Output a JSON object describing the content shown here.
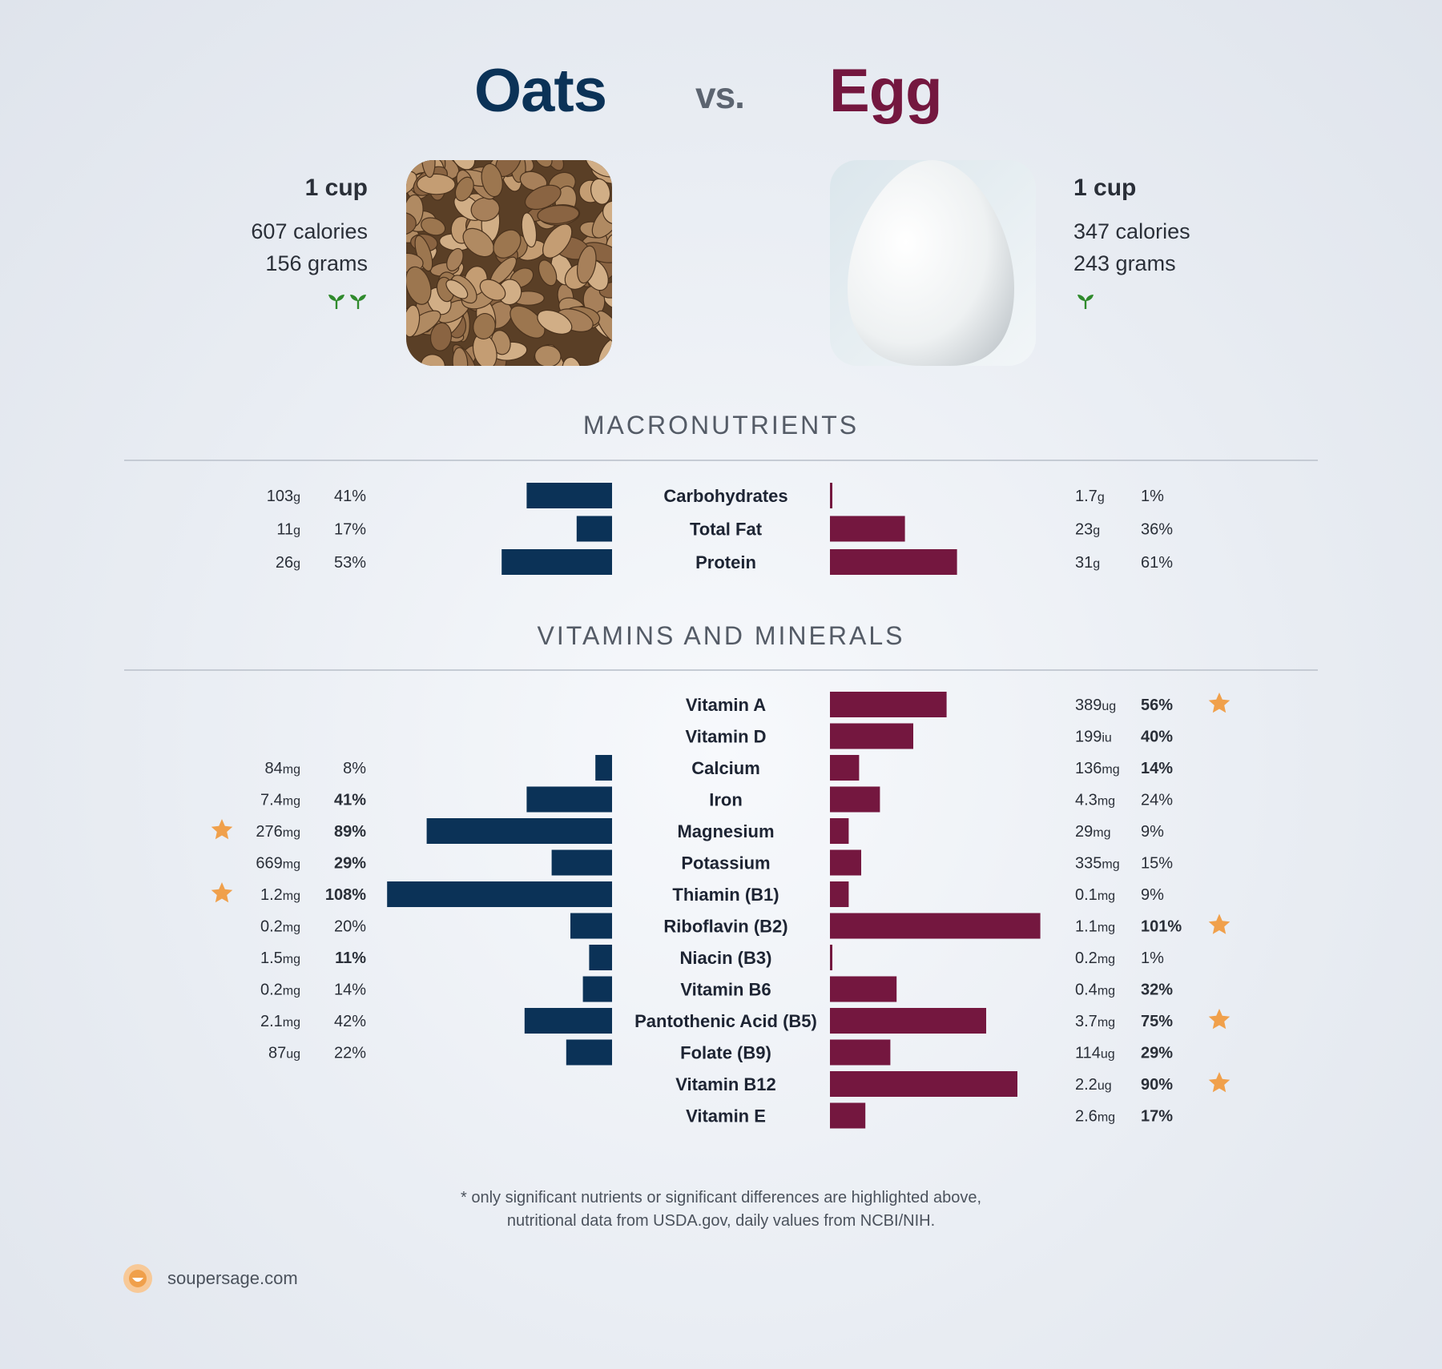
{
  "header": {
    "left_food": "Oats",
    "vs": "vs.",
    "right_food": "Egg"
  },
  "left": {
    "serving": "1 cup",
    "calories": "607 calories",
    "grams": "156 grams",
    "sprout_count": 2,
    "image_icon": "rolled-oats-photo"
  },
  "right": {
    "serving": "1 cup",
    "calories": "347 calories",
    "grams": "243 grams",
    "sprout_count": 1,
    "image_icon": "white-egg-photo"
  },
  "sections": {
    "macro": "MACRONUTRIENTS",
    "vitamins": "VITAMINS AND MINERALS"
  },
  "colors": {
    "left": "#0b3257",
    "right": "#74173f",
    "star": "#f0a04b",
    "sprout": "#2f8a2c"
  },
  "chart_data": [
    {
      "type": "bar",
      "title": "MACRONUTRIENTS",
      "categories": [
        "Carbohydrates",
        "Total Fat",
        "Protein"
      ],
      "series": [
        {
          "name": "Oats",
          "amounts": [
            "103",
            "11",
            "26"
          ],
          "units": [
            "g",
            "g",
            "g"
          ],
          "values": [
            41,
            17,
            53
          ],
          "bold": [
            false,
            false,
            false
          ],
          "star": [
            false,
            false,
            false
          ]
        },
        {
          "name": "Egg",
          "amounts": [
            "1.7",
            "23",
            "31"
          ],
          "units": [
            "g",
            "g",
            "g"
          ],
          "values": [
            1,
            36,
            61
          ],
          "bold": [
            false,
            false,
            false
          ],
          "star": [
            false,
            false,
            false
          ]
        }
      ]
    },
    {
      "type": "bar",
      "title": "VITAMINS AND MINERALS",
      "categories": [
        "Vitamin A",
        "Vitamin D",
        "Calcium",
        "Iron",
        "Magnesium",
        "Potassium",
        "Thiamin (B1)",
        "Riboflavin (B2)",
        "Niacin (B3)",
        "Vitamin B6",
        "Pantothenic Acid (B5)",
        "Folate (B9)",
        "Vitamin B12",
        "Vitamin E"
      ],
      "series": [
        {
          "name": "Oats",
          "amounts": [
            null,
            null,
            "84",
            "7.4",
            "276",
            "669",
            "1.2",
            "0.2",
            "1.5",
            "0.2",
            "2.1",
            "87",
            null,
            null
          ],
          "units": [
            null,
            null,
            "mg",
            "mg",
            "mg",
            "mg",
            "mg",
            "mg",
            "mg",
            "mg",
            "mg",
            "ug",
            null,
            null
          ],
          "values": [
            null,
            null,
            8,
            41,
            89,
            29,
            108,
            20,
            11,
            14,
            42,
            22,
            null,
            null
          ],
          "bold": [
            false,
            false,
            false,
            true,
            true,
            true,
            true,
            false,
            true,
            false,
            false,
            false,
            false,
            false
          ],
          "star": [
            false,
            false,
            false,
            false,
            true,
            false,
            true,
            false,
            false,
            false,
            false,
            false,
            false,
            false
          ]
        },
        {
          "name": "Egg",
          "amounts": [
            "389",
            "199",
            "136",
            "4.3",
            "29",
            "335",
            "0.1",
            "1.1",
            "0.2",
            "0.4",
            "3.7",
            "114",
            "2.2",
            "2.6"
          ],
          "units": [
            "ug",
            "iu",
            "mg",
            "mg",
            "mg",
            "mg",
            "mg",
            "mg",
            "mg",
            "mg",
            "mg",
            "ug",
            "ug",
            "mg"
          ],
          "values": [
            56,
            40,
            14,
            24,
            9,
            15,
            9,
            101,
            1,
            32,
            75,
            29,
            90,
            17
          ],
          "bold": [
            true,
            true,
            true,
            false,
            false,
            false,
            false,
            true,
            false,
            true,
            true,
            true,
            true,
            true
          ],
          "star": [
            true,
            false,
            false,
            false,
            false,
            false,
            false,
            true,
            false,
            false,
            true,
            false,
            true,
            false
          ]
        }
      ]
    }
  ],
  "footnote": {
    "line1": "* only significant nutrients or significant differences are highlighted above,",
    "line2": "nutritional data from USDA.gov, daily values from NCBI/NIH."
  },
  "brand": {
    "name": "soupersage.com",
    "icon": "soupersage-logo-icon"
  }
}
